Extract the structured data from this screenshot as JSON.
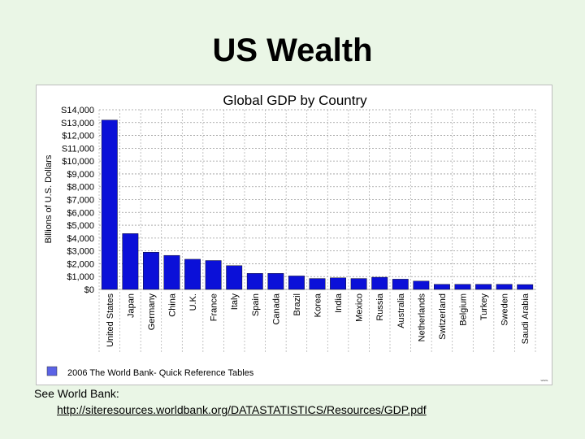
{
  "slide": {
    "title": "US Wealth",
    "caption": "See World Bank:",
    "link": "http://siteresources.worldbank.org/DATASTATISTICS/Resources/GDP.pdf"
  },
  "chart_data": {
    "type": "bar",
    "title": "Global GDP by Country",
    "ylabel": "Billions of U.S. Dollars",
    "xlabel": "",
    "ylim": [
      0,
      14000
    ],
    "yticks": [
      0,
      1000,
      2000,
      3000,
      4000,
      5000,
      6000,
      7000,
      8000,
      9000,
      10000,
      11000,
      12000,
      13000,
      14000
    ],
    "ytick_labels": [
      "$0",
      "$1,000",
      "$2,000",
      "$3,000",
      "$4,000",
      "$5,000",
      "$6,000",
      "$7,000",
      "$8,000",
      "$9,000",
      "$10,000",
      "S11,000",
      "$12,000",
      "S13,000",
      "S14,000"
    ],
    "categories": [
      "United States",
      "Japan",
      "Germany",
      "China",
      "U.K.",
      "France",
      "Italy",
      "Spain",
      "Canada",
      "Brazil",
      "Korea",
      "India",
      "Mexico",
      "Russia",
      "Australia",
      "Netherlands",
      "Switzerland",
      "Belgium",
      "Turkey",
      "Sweden",
      "Saudi Arabia"
    ],
    "values": [
      13200,
      4350,
      2900,
      2650,
      2350,
      2250,
      1850,
      1250,
      1250,
      1050,
      850,
      900,
      850,
      950,
      800,
      650,
      400,
      400,
      400,
      400,
      380
    ],
    "legend": "2006 The World Bank- Quick Reference Tables",
    "bar_color": "#0b10d8",
    "grid": true
  }
}
